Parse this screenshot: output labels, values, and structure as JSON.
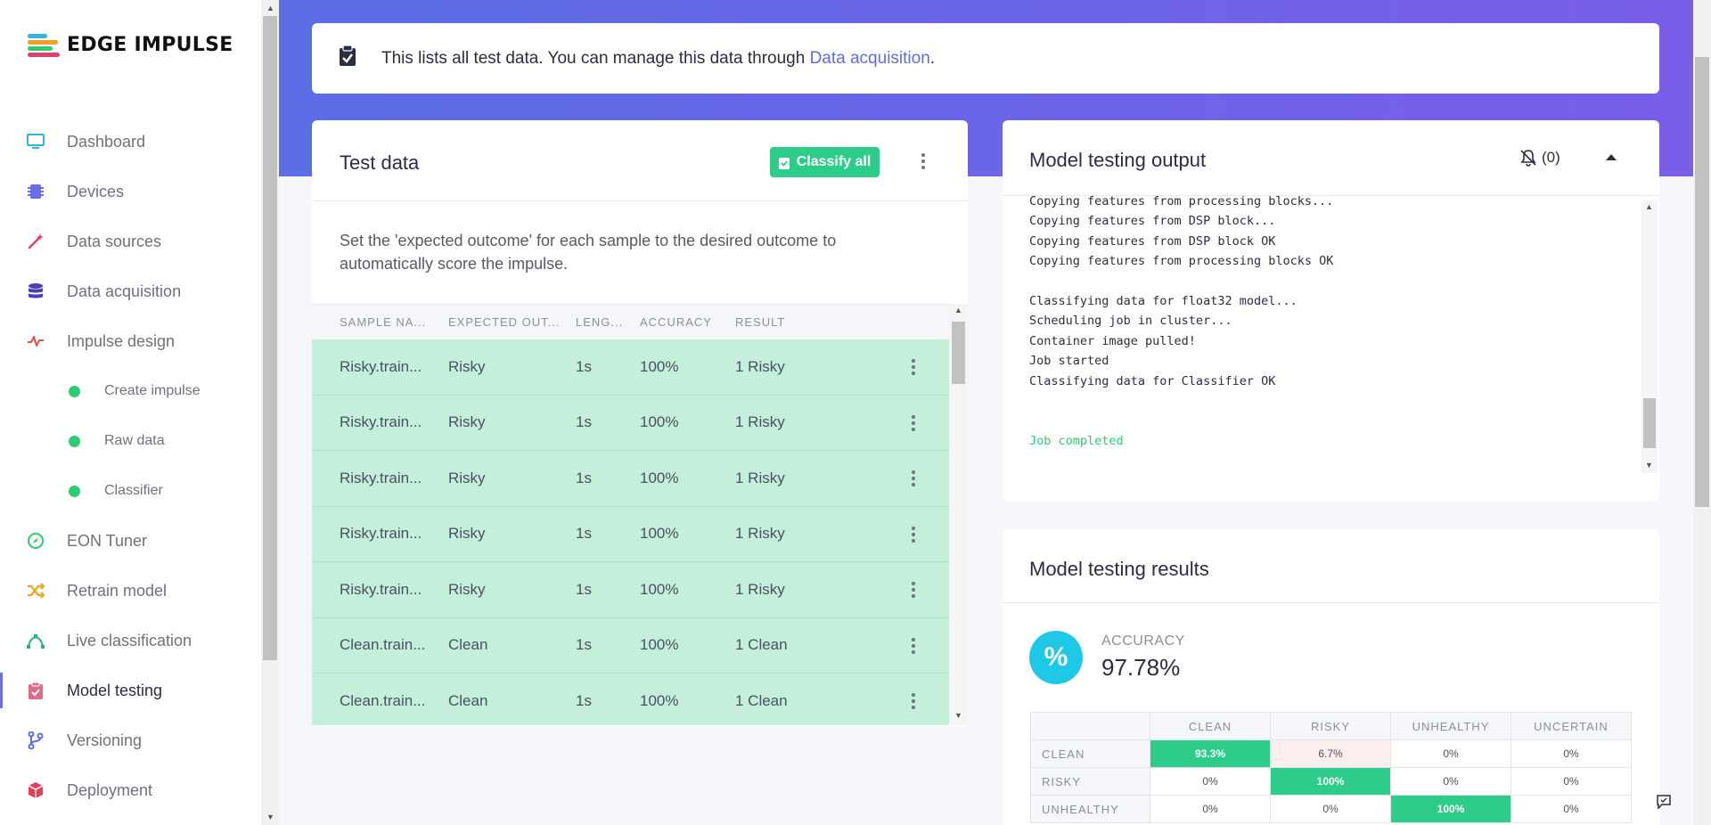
{
  "brand": {
    "name": "EDGE IMPULSE"
  },
  "sidebar": {
    "items": [
      {
        "label": "Dashboard",
        "icon": "monitor-icon",
        "color": "#36b3e0"
      },
      {
        "label": "Devices",
        "icon": "chip-icon",
        "color": "#6c6ee6"
      },
      {
        "label": "Data sources",
        "icon": "magic-wand-icon",
        "color": "#e0406e"
      },
      {
        "label": "Data acquisition",
        "icon": "database-icon",
        "color": "#4b3fb5"
      },
      {
        "label": "Impulse design",
        "icon": "pulse-icon",
        "color": "#e05050"
      },
      {
        "label": "Create impulse",
        "sub": true
      },
      {
        "label": "Raw data",
        "sub": true
      },
      {
        "label": "Classifier",
        "sub": true
      },
      {
        "label": "EON Tuner",
        "icon": "compass-icon",
        "color": "#2ecc71"
      },
      {
        "label": "Retrain model",
        "icon": "shuffle-icon",
        "color": "#f0a020"
      },
      {
        "label": "Live classification",
        "icon": "curve-icon",
        "color": "#2bb08a"
      },
      {
        "label": "Model testing",
        "icon": "clipboard-check-icon",
        "color": "#e06a8a",
        "active": true
      },
      {
        "label": "Versioning",
        "icon": "branch-icon",
        "color": "#5b6ee6"
      },
      {
        "label": "Deployment",
        "icon": "cube-icon",
        "color": "#e0405a"
      }
    ]
  },
  "notice": {
    "text": "This lists all test data. You can manage this data through ",
    "link": "Data acquisition",
    "suffix": "."
  },
  "test_data": {
    "title": "Test data",
    "classify_button": "Classify all",
    "description": "Set the 'expected outcome' for each sample to the desired outcome to automatically score the impulse.",
    "columns": [
      "SAMPLE NA...",
      "EXPECTED OUT...",
      "LENG...",
      "ACCURACY",
      "RESULT"
    ],
    "rows": [
      {
        "name": "Risky.train...",
        "expected": "Risky",
        "length": "1s",
        "accuracy": "100%",
        "result": "1 Risky"
      },
      {
        "name": "Risky.train...",
        "expected": "Risky",
        "length": "1s",
        "accuracy": "100%",
        "result": "1 Risky"
      },
      {
        "name": "Risky.train...",
        "expected": "Risky",
        "length": "1s",
        "accuracy": "100%",
        "result": "1 Risky"
      },
      {
        "name": "Risky.train...",
        "expected": "Risky",
        "length": "1s",
        "accuracy": "100%",
        "result": "1 Risky"
      },
      {
        "name": "Risky.train...",
        "expected": "Risky",
        "length": "1s",
        "accuracy": "100%",
        "result": "1 Risky"
      },
      {
        "name": "Clean.train...",
        "expected": "Clean",
        "length": "1s",
        "accuracy": "100%",
        "result": "1 Clean"
      },
      {
        "name": "Clean.train...",
        "expected": "Clean",
        "length": "1s",
        "accuracy": "100%",
        "result": "1 Clean"
      }
    ]
  },
  "output": {
    "title": "Model testing output",
    "notifications": "(0)",
    "lines": [
      "Copying features from processing blocks...",
      "Copying features from DSP block...",
      "Copying features from DSP block OK",
      "Copying features from processing blocks OK",
      "",
      "Classifying data for float32 model...",
      "Scheduling job in cluster...",
      "Container image pulled!",
      "Job started",
      "Classifying data for Classifier OK",
      "",
      ""
    ],
    "final_line": "Job completed"
  },
  "results": {
    "title": "Model testing results",
    "accuracy_label": "ACCURACY",
    "accuracy_value": "97.78%",
    "accuracy_icon": "%",
    "matrix": {
      "columns": [
        "CLEAN",
        "RISKY",
        "UNHEALTHY",
        "UNCERTAIN"
      ],
      "rows": [
        {
          "label": "CLEAN",
          "values": [
            "93.3%",
            "6.7%",
            "0%",
            "0%"
          ]
        },
        {
          "label": "RISKY",
          "values": [
            "0%",
            "100%",
            "0%",
            "0%"
          ]
        },
        {
          "label": "UNHEALTHY",
          "values": [
            "0%",
            "0%",
            "100%",
            "0%"
          ]
        }
      ]
    }
  }
}
